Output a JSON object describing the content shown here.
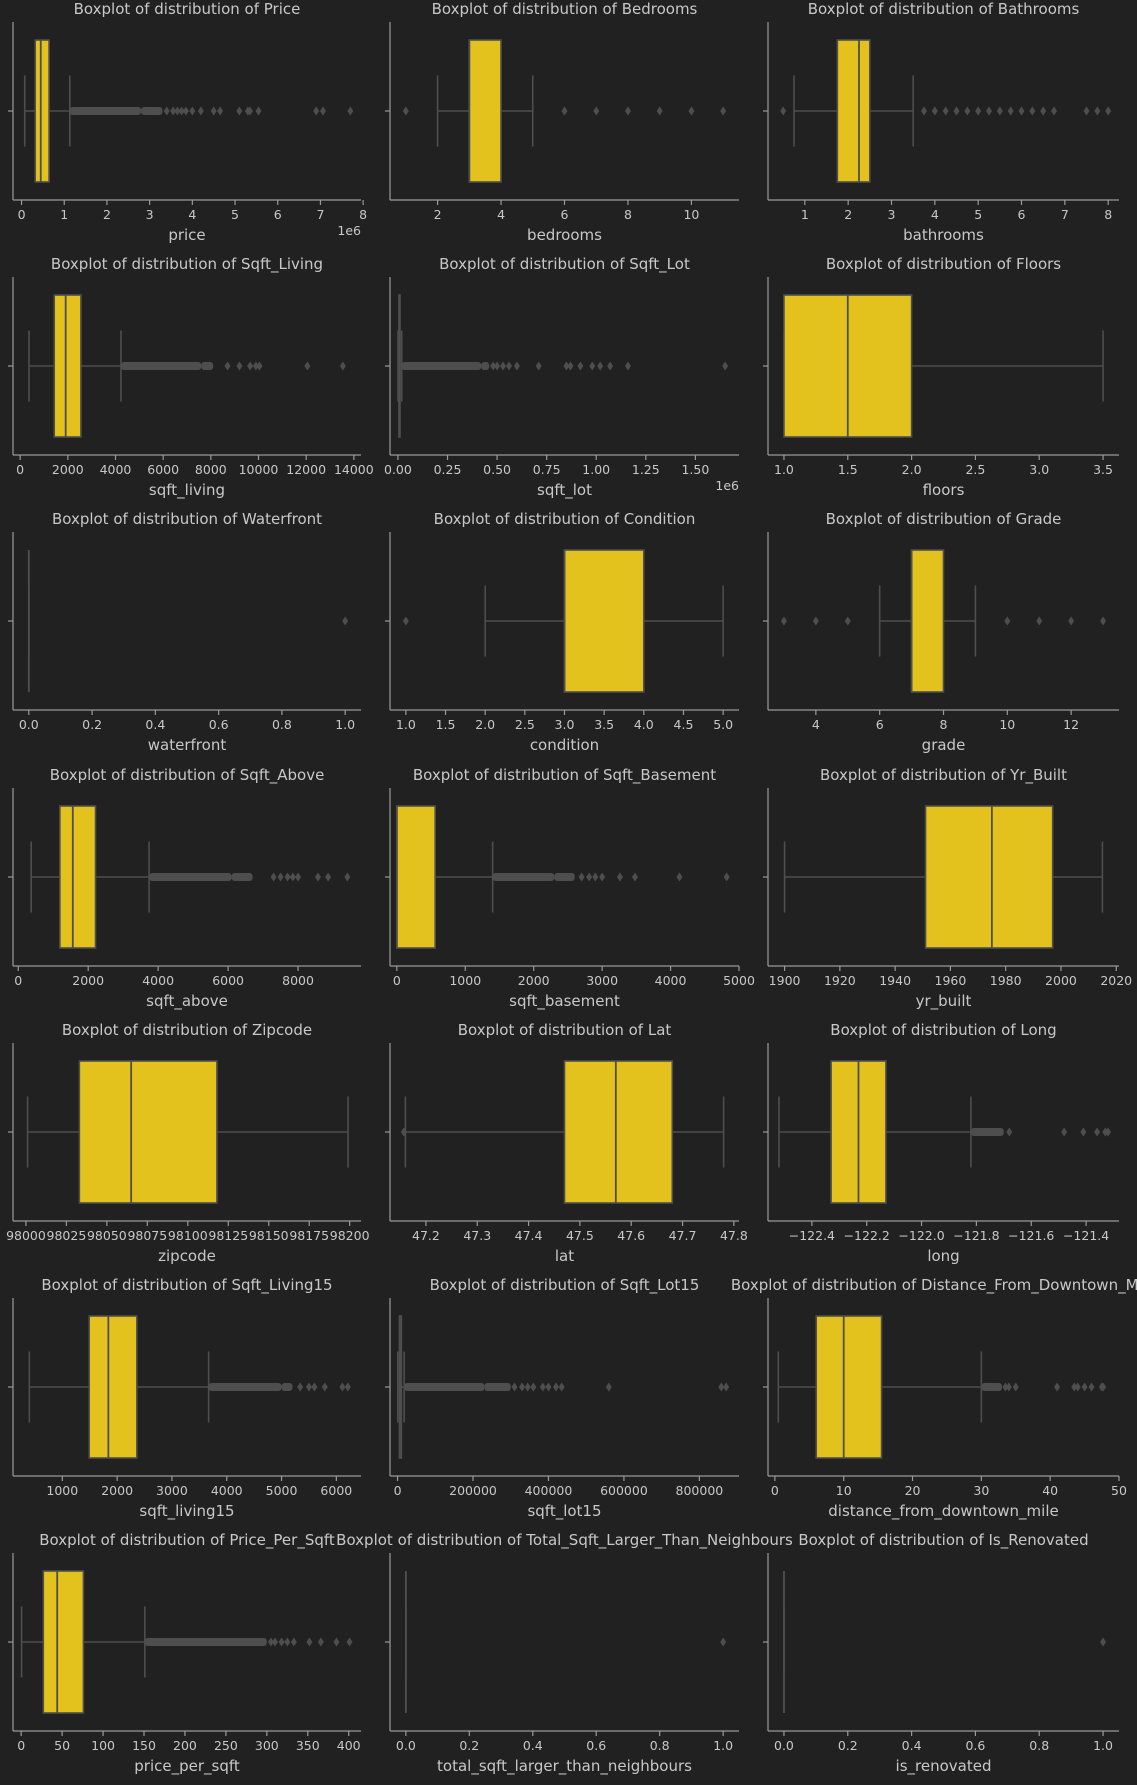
{
  "figure": {
    "background": "#212121",
    "box_color": "#e3c21d",
    "line_color": "#4e4e4e",
    "text_color": "#c8c8c8",
    "axis_color": "#9a9a9a"
  },
  "chart_data": [
    {
      "type": "boxplot",
      "title": "Boxplot of distribution of Price",
      "xlabel": "price",
      "offset_label": "1e6",
      "xlim": [
        -0.2,
        7.95
      ],
      "ticks": [
        0,
        1,
        2,
        3,
        4,
        5,
        6,
        7,
        8
      ],
      "tick_labels": [
        "0",
        "1",
        "2",
        "3",
        "4",
        "5",
        "6",
        "7",
        "8"
      ],
      "whisker_low": 0.075,
      "q1": 0.32,
      "median": 0.45,
      "q3": 0.645,
      "whisker_high": 1.13,
      "outlier_ranges": [
        [
          1.13,
          2.8
        ],
        [
          2.8,
          3.3
        ]
      ],
      "outliers": [
        3.4,
        3.55,
        3.65,
        3.75,
        3.85,
        4.0,
        4.2,
        4.5,
        4.65,
        5.1,
        5.3,
        5.35,
        5.55,
        6.9,
        7.06,
        7.7
      ]
    },
    {
      "type": "boxplot",
      "title": "Boxplot of distribution of Bedrooms",
      "xlabel": "bedrooms",
      "offset_label": "",
      "xlim": [
        0.5,
        11.5
      ],
      "ticks": [
        2,
        4,
        6,
        8,
        10
      ],
      "tick_labels": [
        "2",
        "4",
        "6",
        "8",
        "10"
      ],
      "whisker_low": 2,
      "q1": 3,
      "median": 3,
      "q3": 4,
      "whisker_high": 5,
      "outlier_ranges": [],
      "outliers": [
        1,
        6,
        7,
        8,
        9,
        10,
        11
      ]
    },
    {
      "type": "boxplot",
      "title": "Boxplot of distribution of Bathrooms",
      "xlabel": "bathrooms",
      "offset_label": "",
      "xlim": [
        0.15,
        8.25
      ],
      "ticks": [
        1,
        2,
        3,
        4,
        5,
        6,
        7,
        8
      ],
      "tick_labels": [
        "1",
        "2",
        "3",
        "4",
        "5",
        "6",
        "7",
        "8"
      ],
      "whisker_low": 0.75,
      "q1": 1.75,
      "median": 2.25,
      "q3": 2.5,
      "whisker_high": 3.5,
      "outlier_ranges": [],
      "outliers": [
        0.5,
        3.75,
        4.0,
        4.25,
        4.5,
        4.75,
        5.0,
        5.25,
        5.5,
        5.75,
        6.0,
        6.25,
        6.5,
        6.75,
        7.5,
        7.75,
        8.0
      ]
    },
    {
      "type": "boxplot",
      "title": "Boxplot of distribution of Sqft_Living",
      "xlabel": "sqft_living",
      "offset_label": "",
      "xlim": [
        -300,
        14300
      ],
      "ticks": [
        0,
        2000,
        4000,
        6000,
        8000,
        10000,
        12000,
        14000
      ],
      "tick_labels": [
        "0",
        "2000",
        "4000",
        "6000",
        "8000",
        "10000",
        "12000",
        "14000"
      ],
      "whisker_low": 370,
      "q1": 1430,
      "median": 1910,
      "q3": 2550,
      "whisker_high": 4230,
      "outlier_ranges": [
        [
          4230,
          7600
        ],
        [
          7600,
          8100
        ]
      ],
      "outliers": [
        8700,
        9200,
        9650,
        9890,
        10040,
        12050,
        13540
      ]
    },
    {
      "type": "boxplot",
      "title": "Boxplot of distribution of Sqft_Lot",
      "xlabel": "sqft_lot",
      "offset_label": "1e6",
      "xlim": [
        -0.04,
        1.72
      ],
      "ticks": [
        0,
        0.25,
        0.5,
        0.75,
        1.0,
        1.25,
        1.5
      ],
      "tick_labels": [
        "0.00",
        "0.25",
        "0.50",
        "0.75",
        "1.00",
        "1.25",
        "1.50"
      ],
      "whisker_low": 0.0005,
      "q1": 0.005,
      "median": 0.0076,
      "q3": 0.0107,
      "whisker_high": 0.019,
      "outlier_ranges": [
        [
          0.019,
          0.42
        ],
        [
          0.42,
          0.46
        ]
      ],
      "outliers": [
        0.48,
        0.5,
        0.53,
        0.56,
        0.6,
        0.71,
        0.85,
        0.87,
        0.92,
        0.98,
        1.02,
        1.07,
        1.16,
        1.65
      ]
    },
    {
      "type": "boxplot",
      "title": "Boxplot of distribution of Floors",
      "xlabel": "floors",
      "offset_label": "",
      "xlim": [
        0.875,
        3.625
      ],
      "ticks": [
        1.0,
        1.5,
        2.0,
        2.5,
        3.0,
        3.5
      ],
      "tick_labels": [
        "1.0",
        "1.5",
        "2.0",
        "2.5",
        "3.0",
        "3.5"
      ],
      "whisker_low": 1.0,
      "q1": 1.0,
      "median": 1.5,
      "q3": 2.0,
      "whisker_high": 3.5,
      "outlier_ranges": [],
      "outliers": []
    },
    {
      "type": "boxplot",
      "title": "Boxplot of distribution of Waterfront",
      "xlabel": "waterfront",
      "offset_label": "",
      "xlim": [
        -0.05,
        1.05
      ],
      "ticks": [
        0,
        0.2,
        0.4,
        0.6,
        0.8,
        1.0
      ],
      "tick_labels": [
        "0.0",
        "0.2",
        "0.4",
        "0.6",
        "0.8",
        "1.0"
      ],
      "whisker_low": 0,
      "q1": 0,
      "median": 0,
      "q3": 0,
      "whisker_high": 0,
      "outlier_ranges": [],
      "outliers": [
        1.0
      ]
    },
    {
      "type": "boxplot",
      "title": "Boxplot of distribution of Condition",
      "xlabel": "condition",
      "offset_label": "",
      "xlim": [
        0.8,
        5.2
      ],
      "ticks": [
        1.0,
        1.5,
        2.0,
        2.5,
        3.0,
        3.5,
        4.0,
        4.5,
        5.0
      ],
      "tick_labels": [
        "1.0",
        "1.5",
        "2.0",
        "2.5",
        "3.0",
        "3.5",
        "4.0",
        "4.5",
        "5.0"
      ],
      "whisker_low": 2,
      "q1": 3,
      "median": 3,
      "q3": 4,
      "whisker_high": 5,
      "outlier_ranges": [],
      "outliers": [
        1
      ]
    },
    {
      "type": "boxplot",
      "title": "Boxplot of distribution of Grade",
      "xlabel": "grade",
      "offset_label": "",
      "xlim": [
        2.5,
        13.5
      ],
      "ticks": [
        4,
        6,
        8,
        10,
        12
      ],
      "tick_labels": [
        "4",
        "6",
        "8",
        "10",
        "12"
      ],
      "whisker_low": 6,
      "q1": 7,
      "median": 7,
      "q3": 8,
      "whisker_high": 9,
      "outlier_ranges": [],
      "outliers": [
        3,
        4,
        5,
        10,
        11,
        12,
        13
      ]
    },
    {
      "type": "boxplot",
      "title": "Boxplot of distribution of Sqft_Above",
      "xlabel": "sqft_above",
      "offset_label": "",
      "xlim": [
        -150,
        9800
      ],
      "ticks": [
        0,
        2000,
        4000,
        6000,
        8000
      ],
      "tick_labels": [
        "0",
        "2000",
        "4000",
        "6000",
        "8000"
      ],
      "whisker_low": 370,
      "q1": 1190,
      "median": 1560,
      "q3": 2210,
      "whisker_high": 3740,
      "outlier_ranges": [
        [
          3740,
          6100
        ],
        [
          6100,
          6700
        ]
      ],
      "outliers": [
        7300,
        7500,
        7700,
        7850,
        8000,
        8570,
        8860,
        9410
      ]
    },
    {
      "type": "boxplot",
      "title": "Boxplot of distribution of Sqft_Basement",
      "xlabel": "sqft_basement",
      "offset_label": "",
      "xlim": [
        -100,
        5000
      ],
      "ticks": [
        0,
        1000,
        2000,
        3000,
        4000,
        5000
      ],
      "tick_labels": [
        "0",
        "1000",
        "2000",
        "3000",
        "4000",
        "5000"
      ],
      "whisker_low": 0,
      "q1": 0,
      "median": 0,
      "q3": 560,
      "whisker_high": 1400,
      "outlier_ranges": [
        [
          1400,
          2300
        ],
        [
          2300,
          2600
        ]
      ],
      "outliers": [
        2700,
        2810,
        2900,
        3000,
        3260,
        3480,
        4130,
        4820
      ]
    },
    {
      "type": "boxplot",
      "title": "Boxplot of distribution of Yr_Built",
      "xlabel": "yr_built",
      "offset_label": "",
      "xlim": [
        1894,
        2021
      ],
      "ticks": [
        1900,
        1920,
        1940,
        1960,
        1980,
        2000,
        2020
      ],
      "tick_labels": [
        "1900",
        "1920",
        "1940",
        "1960",
        "1980",
        "2000",
        "2020"
      ],
      "whisker_low": 1900,
      "q1": 1951,
      "median": 1975,
      "q3": 1997,
      "whisker_high": 2015,
      "outlier_ranges": [],
      "outliers": []
    },
    {
      "type": "boxplot",
      "title": "Boxplot of distribution of Zipcode",
      "xlabel": "zipcode",
      "offset_label": "",
      "xlim": [
        97992,
        98207
      ],
      "ticks": [
        98000,
        98025,
        98050,
        98075,
        98100,
        98125,
        98150,
        98175,
        98200
      ],
      "tick_labels": [
        "98000",
        "98025",
        "98050",
        "98075",
        "98100",
        "98125",
        "98150",
        "98175",
        "98200"
      ],
      "whisker_low": 98001,
      "q1": 98033,
      "median": 98065,
      "q3": 98118,
      "whisker_high": 98199,
      "outlier_ranges": [],
      "outliers": []
    },
    {
      "type": "boxplot",
      "title": "Boxplot of distribution of Lat",
      "xlabel": "lat",
      "offset_label": "",
      "xlim": [
        47.13,
        47.81
      ],
      "ticks": [
        47.2,
        47.3,
        47.4,
        47.5,
        47.6,
        47.7,
        47.8
      ],
      "tick_labels": [
        "47.2",
        "47.3",
        "47.4",
        "47.5",
        "47.6",
        "47.7",
        "47.8"
      ],
      "whisker_low": 47.16,
      "q1": 47.47,
      "median": 47.57,
      "q3": 47.68,
      "whisker_high": 47.78,
      "outlier_ranges": [],
      "outliers": [
        47.157
      ]
    },
    {
      "type": "boxplot",
      "title": "Boxplot of distribution of Long",
      "xlabel": "long",
      "offset_label": "",
      "xlim": [
        -122.56,
        -121.28
      ],
      "ticks": [
        -122.4,
        -122.2,
        -122.0,
        -121.8,
        -121.6,
        -121.4
      ],
      "tick_labels": [
        "−122.4",
        "−122.2",
        "−122.0",
        "−121.8",
        "−121.6",
        "−121.4"
      ],
      "whisker_low": -122.52,
      "q1": -122.33,
      "median": -122.23,
      "q3": -122.13,
      "whisker_high": -121.82,
      "outlier_ranges": [
        [
          -121.82,
          -121.7
        ]
      ],
      "outliers": [
        -121.68,
        -121.48,
        -121.41,
        -121.36,
        -121.33,
        -121.32
      ]
    },
    {
      "type": "boxplot",
      "title": "Boxplot of distribution of Sqft_Living15",
      "xlabel": "sqft_living15",
      "offset_label": "",
      "xlim": [
        100,
        6450
      ],
      "ticks": [
        1000,
        2000,
        3000,
        4000,
        5000,
        6000
      ],
      "tick_labels": [
        "1000",
        "2000",
        "3000",
        "4000",
        "5000",
        "6000"
      ],
      "whisker_low": 399,
      "q1": 1490,
      "median": 1840,
      "q3": 2360,
      "whisker_high": 3670,
      "outlier_ranges": [
        [
          3670,
          5000
        ],
        [
          5000,
          5200
        ]
      ],
      "outliers": [
        5340,
        5500,
        5600,
        5790,
        6110,
        6210
      ]
    },
    {
      "type": "boxplot",
      "title": "Boxplot of distribution of Sqft_Lot15",
      "xlabel": "sqft_lot15",
      "offset_label": "",
      "xlim": [
        -20000,
        905000
      ],
      "ticks": [
        0,
        200000,
        400000,
        600000,
        800000
      ],
      "tick_labels": [
        "0",
        "200000",
        "400000",
        "600000",
        "800000"
      ],
      "whisker_low": 650,
      "q1": 5100,
      "median": 7620,
      "q3": 10080,
      "whisker_high": 17550,
      "outlier_ranges": [
        [
          17550,
          230000
        ],
        [
          230000,
          300000
        ]
      ],
      "outliers": [
        310000,
        330000,
        345000,
        360000,
        385000,
        400000,
        420000,
        435000,
        560000,
        858000,
        871000
      ]
    },
    {
      "type": "boxplot",
      "title": "Boxplot of distribution of Distance_From_Downtown_Mile",
      "xlabel": "distance_from_downtown_mile",
      "offset_label": "",
      "xlim": [
        -1,
        50
      ],
      "ticks": [
        0,
        10,
        20,
        30,
        40,
        50
      ],
      "tick_labels": [
        "0",
        "10",
        "20",
        "30",
        "40",
        "50"
      ],
      "whisker_low": 0.5,
      "q1": 6,
      "median": 10,
      "q3": 15.5,
      "whisker_high": 30,
      "outlier_ranges": [
        [
          30,
          33
        ]
      ],
      "outliers": [
        33.5,
        34,
        35,
        41,
        43.5,
        44,
        45,
        46,
        47.5,
        47.7
      ]
    },
    {
      "type": "boxplot",
      "title": "Boxplot of distribution of Price_Per_Sqft",
      "xlabel": "price_per_sqft",
      "offset_label": "",
      "xlim": [
        -10,
        415
      ],
      "ticks": [
        0,
        50,
        100,
        150,
        200,
        250,
        300,
        350,
        400
      ],
      "tick_labels": [
        "0",
        "50",
        "100",
        "150",
        "200",
        "250",
        "300",
        "350",
        "400"
      ],
      "whisker_low": 0.5,
      "q1": 27,
      "median": 44,
      "q3": 76,
      "whisker_high": 151,
      "outlier_ranges": [
        [
          151,
          300
        ]
      ],
      "outliers": [
        305,
        310,
        318,
        325,
        333,
        352,
        366,
        385,
        401
      ]
    },
    {
      "type": "boxplot",
      "title": "Boxplot of distribution of Total_Sqft_Larger_Than_Neighbours",
      "xlabel": "total_sqft_larger_than_neighbours",
      "offset_label": "",
      "xlim": [
        -0.05,
        1.05
      ],
      "ticks": [
        0,
        0.2,
        0.4,
        0.6,
        0.8,
        1.0
      ],
      "tick_labels": [
        "0.0",
        "0.2",
        "0.4",
        "0.6",
        "0.8",
        "1.0"
      ],
      "whisker_low": 0,
      "q1": 0,
      "median": 0,
      "q3": 0,
      "whisker_high": 0,
      "outlier_ranges": [],
      "outliers": [
        1.0
      ]
    },
    {
      "type": "boxplot",
      "title": "Boxplot of distribution of Is_Renovated",
      "xlabel": "is_renovated",
      "offset_label": "",
      "xlim": [
        -0.05,
        1.05
      ],
      "ticks": [
        0,
        0.2,
        0.4,
        0.6,
        0.8,
        1.0
      ],
      "tick_labels": [
        "0.0",
        "0.2",
        "0.4",
        "0.6",
        "0.8",
        "1.0"
      ],
      "whisker_low": 0,
      "q1": 0,
      "median": 0,
      "q3": 0,
      "whisker_high": 0,
      "outlier_ranges": [],
      "outliers": [
        1.0
      ]
    }
  ]
}
